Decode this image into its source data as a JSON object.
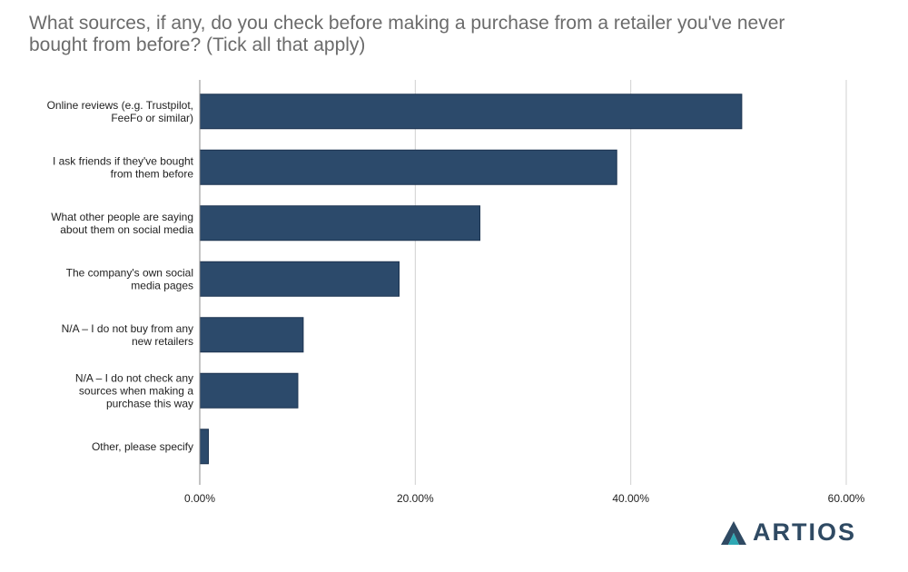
{
  "colors": {
    "bar": "#2c4a6b",
    "grid": "#d0d0d0",
    "axis": "#888888",
    "title": "#6b6b6b",
    "brand": "#2f4a63",
    "brand_accent": "#2ea8b4"
  },
  "brand": {
    "name": "ARTIOS",
    "icon": "artios-logo-icon"
  },
  "chart_data": {
    "type": "bar",
    "orientation": "horizontal",
    "title": " What sources, if any, do you check before making a purchase from a retailer you've never\nbought from before? (Tick all that apply)",
    "categories": [
      "Online reviews (e.g. Trustpilot,\nFeeFo or similar)",
      "I ask friends if they've bought\nfrom them before",
      "What other people are saying\nabout them on social media",
      "The company's own social\nmedia pages",
      "N/A – I do not buy from any\nnew retailers",
      "N/A – I do not check any\nsources when making a\npurchase this way",
      "Other, please specify"
    ],
    "values": [
      50.3,
      38.7,
      26.0,
      18.5,
      9.6,
      9.1,
      0.8
    ],
    "xlim": [
      0,
      60
    ],
    "xticks": [
      0,
      20,
      40,
      60
    ],
    "xtick_labels": [
      "0.00%",
      "20.00%",
      "40.00%",
      "60.00%"
    ],
    "grid": "vertical",
    "legend": "none"
  }
}
